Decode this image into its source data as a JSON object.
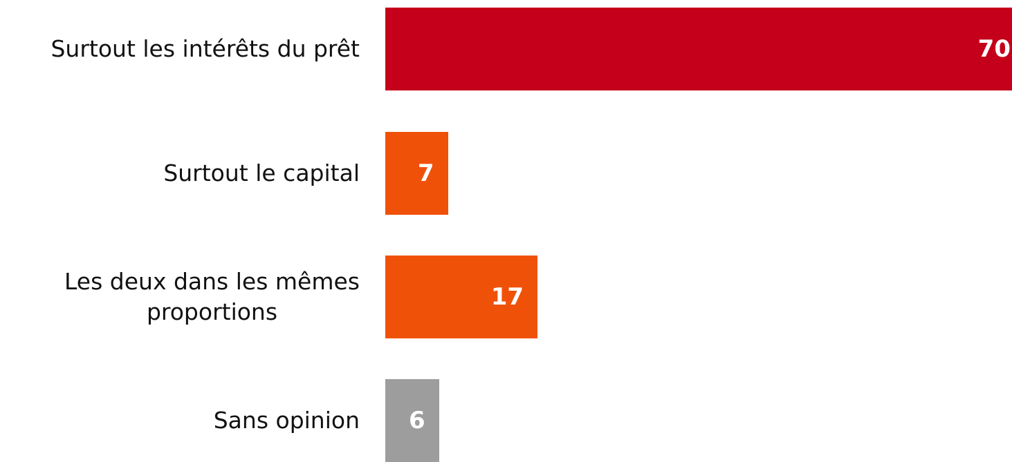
{
  "chart_data": {
    "type": "bar",
    "orientation": "horizontal",
    "categories": [
      "Surtout les intérêts du prêt",
      "Surtout le capital",
      "Les deux dans les mêmes proportions",
      "Sans opinion"
    ],
    "category_lines": [
      [
        "Surtout les intérêts du prêt"
      ],
      [
        "Surtout le capital"
      ],
      [
        "Les deux dans les mêmes",
        "proportions"
      ],
      [
        "Sans opinion"
      ]
    ],
    "values": [
      70,
      7,
      17,
      6
    ],
    "value_labels": [
      "70",
      "7",
      "17",
      "6"
    ],
    "colors": [
      "#c4001a",
      "#f05109",
      "#f05109",
      "#9d9d9d"
    ],
    "xlim": [
      0,
      70
    ],
    "grid": false,
    "legend": "none"
  }
}
